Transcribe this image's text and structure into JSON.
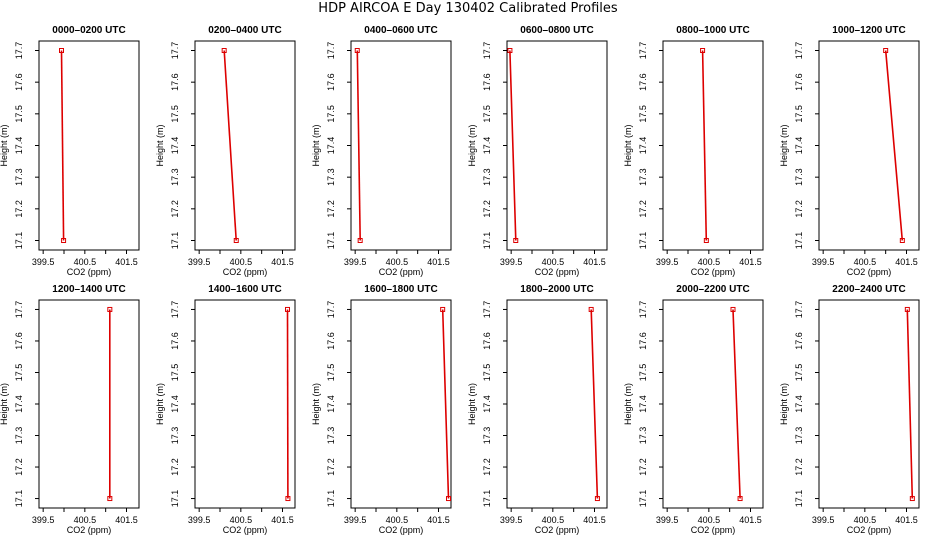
{
  "title": "HDP AIRCOA E  Day 130402  Calibrated Profiles",
  "colors": {
    "line": "#dd0000",
    "axis": "#000000"
  },
  "chart_data": [
    {
      "type": "line",
      "title": "0000–0200 UTC",
      "xlabel": "CO2 (ppm)",
      "ylabel": "Height (m)",
      "xlim": [
        399.4,
        401.8
      ],
      "ylim": [
        17.07,
        17.73
      ],
      "xticks": [
        "399.5",
        "400.5",
        "401.5"
      ],
      "yticks": [
        "17.1",
        "17.2",
        "17.3",
        "17.4",
        "17.5",
        "17.6",
        "17.7"
      ],
      "grid": false,
      "points": [
        {
          "x": 399.99,
          "y": 17.1
        },
        {
          "x": 399.94,
          "y": 17.7
        }
      ]
    },
    {
      "type": "line",
      "title": "0200–0400 UTC",
      "xlabel": "CO2 (ppm)",
      "ylabel": "Height (m)",
      "xlim": [
        399.4,
        401.8
      ],
      "ylim": [
        17.07,
        17.73
      ],
      "xticks": [
        "399.5",
        "400.5",
        "401.5"
      ],
      "yticks": [
        "17.1",
        "17.2",
        "17.3",
        "17.4",
        "17.5",
        "17.6",
        "17.7"
      ],
      "grid": false,
      "points": [
        {
          "x": 400.39,
          "y": 17.1
        },
        {
          "x": 400.1,
          "y": 17.7
        }
      ]
    },
    {
      "type": "line",
      "title": "0400–0600 UTC",
      "xlabel": "CO2 (ppm)",
      "ylabel": "Height (m)",
      "xlim": [
        399.4,
        401.8
      ],
      "ylim": [
        17.07,
        17.73
      ],
      "xticks": [
        "399.5",
        "400.5",
        "401.5"
      ],
      "yticks": [
        "17.1",
        "17.2",
        "17.3",
        "17.4",
        "17.5",
        "17.6",
        "17.7"
      ],
      "grid": false,
      "points": [
        {
          "x": 399.62,
          "y": 17.1
        },
        {
          "x": 399.55,
          "y": 17.7
        }
      ]
    },
    {
      "type": "line",
      "title": "0600–0800 UTC",
      "xlabel": "CO2 (ppm)",
      "ylabel": "Height (m)",
      "xlim": [
        399.4,
        401.8
      ],
      "ylim": [
        17.07,
        17.73
      ],
      "xticks": [
        "399.5",
        "400.5",
        "401.5"
      ],
      "yticks": [
        "17.1",
        "17.2",
        "17.3",
        "17.4",
        "17.5",
        "17.6",
        "17.7"
      ],
      "grid": false,
      "points": [
        {
          "x": 399.61,
          "y": 17.1
        },
        {
          "x": 399.47,
          "y": 17.7
        }
      ]
    },
    {
      "type": "line",
      "title": "0800–1000 UTC",
      "xlabel": "CO2 (ppm)",
      "ylabel": "Height (m)",
      "xlim": [
        399.4,
        401.8
      ],
      "ylim": [
        17.07,
        17.73
      ],
      "xticks": [
        "399.5",
        "400.5",
        "401.5"
      ],
      "yticks": [
        "17.1",
        "17.2",
        "17.3",
        "17.4",
        "17.5",
        "17.6",
        "17.7"
      ],
      "grid": false,
      "points": [
        {
          "x": 400.44,
          "y": 17.1
        },
        {
          "x": 400.35,
          "y": 17.7
        }
      ]
    },
    {
      "type": "line",
      "title": "1000–1200 UTC",
      "xlabel": "CO2 (ppm)",
      "ylabel": "Height (m)",
      "xlim": [
        399.4,
        401.8
      ],
      "ylim": [
        17.07,
        17.73
      ],
      "xticks": [
        "399.5",
        "400.5",
        "401.5"
      ],
      "yticks": [
        "17.1",
        "17.2",
        "17.3",
        "17.4",
        "17.5",
        "17.6",
        "17.7"
      ],
      "grid": false,
      "points": [
        {
          "x": 401.4,
          "y": 17.1
        },
        {
          "x": 401.0,
          "y": 17.7
        }
      ]
    },
    {
      "type": "line",
      "title": "1200–1400 UTC",
      "xlabel": "CO2 (ppm)",
      "ylabel": "Height (m)",
      "xlim": [
        399.4,
        401.8
      ],
      "ylim": [
        17.07,
        17.73
      ],
      "xticks": [
        "399.5",
        "400.5",
        "401.5"
      ],
      "yticks": [
        "17.1",
        "17.2",
        "17.3",
        "17.4",
        "17.5",
        "17.6",
        "17.7"
      ],
      "grid": false,
      "points": [
        {
          "x": 401.1,
          "y": 17.1
        },
        {
          "x": 401.1,
          "y": 17.7
        }
      ]
    },
    {
      "type": "line",
      "title": "1400–1600 UTC",
      "xlabel": "CO2 (ppm)",
      "ylabel": "Height (m)",
      "xlim": [
        399.4,
        401.8
      ],
      "ylim": [
        17.07,
        17.73
      ],
      "xticks": [
        "399.5",
        "400.5",
        "401.5"
      ],
      "yticks": [
        "17.1",
        "17.2",
        "17.3",
        "17.4",
        "17.5",
        "17.6",
        "17.7"
      ],
      "grid": false,
      "points": [
        {
          "x": 401.63,
          "y": 17.1
        },
        {
          "x": 401.62,
          "y": 17.7
        }
      ]
    },
    {
      "type": "line",
      "title": "1600–1800 UTC",
      "xlabel": "CO2 (ppm)",
      "ylabel": "Height (m)",
      "xlim": [
        399.4,
        401.8
      ],
      "ylim": [
        17.07,
        17.73
      ],
      "xticks": [
        "399.5",
        "400.5",
        "401.5"
      ],
      "yticks": [
        "17.1",
        "17.2",
        "17.3",
        "17.4",
        "17.5",
        "17.6",
        "17.7"
      ],
      "grid": false,
      "points": [
        {
          "x": 401.74,
          "y": 17.1
        },
        {
          "x": 401.6,
          "y": 17.7
        }
      ]
    },
    {
      "type": "line",
      "title": "1800–2000 UTC",
      "xlabel": "CO2 (ppm)",
      "ylabel": "Height (m)",
      "xlim": [
        399.4,
        401.8
      ],
      "ylim": [
        17.07,
        17.73
      ],
      "xticks": [
        "399.5",
        "400.5",
        "401.5"
      ],
      "yticks": [
        "17.1",
        "17.2",
        "17.3",
        "17.4",
        "17.5",
        "17.6",
        "17.7"
      ],
      "grid": false,
      "points": [
        {
          "x": 401.57,
          "y": 17.1
        },
        {
          "x": 401.42,
          "y": 17.7
        }
      ]
    },
    {
      "type": "line",
      "title": "2000–2200 UTC",
      "xlabel": "CO2 (ppm)",
      "ylabel": "Height (m)",
      "xlim": [
        399.4,
        401.8
      ],
      "ylim": [
        17.07,
        17.73
      ],
      "xticks": [
        "399.5",
        "400.5",
        "401.5"
      ],
      "yticks": [
        "17.1",
        "17.2",
        "17.3",
        "17.4",
        "17.5",
        "17.6",
        "17.7"
      ],
      "grid": false,
      "points": [
        {
          "x": 401.25,
          "y": 17.1
        },
        {
          "x": 401.08,
          "y": 17.7
        }
      ]
    },
    {
      "type": "line",
      "title": "2200–2400 UTC",
      "xlabel": "CO2 (ppm)",
      "ylabel": "Height (m)",
      "xlim": [
        399.4,
        401.8
      ],
      "ylim": [
        17.07,
        17.73
      ],
      "xticks": [
        "399.5",
        "400.5",
        "401.5"
      ],
      "yticks": [
        "17.1",
        "17.2",
        "17.3",
        "17.4",
        "17.5",
        "17.6",
        "17.7"
      ],
      "grid": false,
      "points": [
        {
          "x": 401.64,
          "y": 17.1
        },
        {
          "x": 401.52,
          "y": 17.7
        }
      ]
    }
  ]
}
